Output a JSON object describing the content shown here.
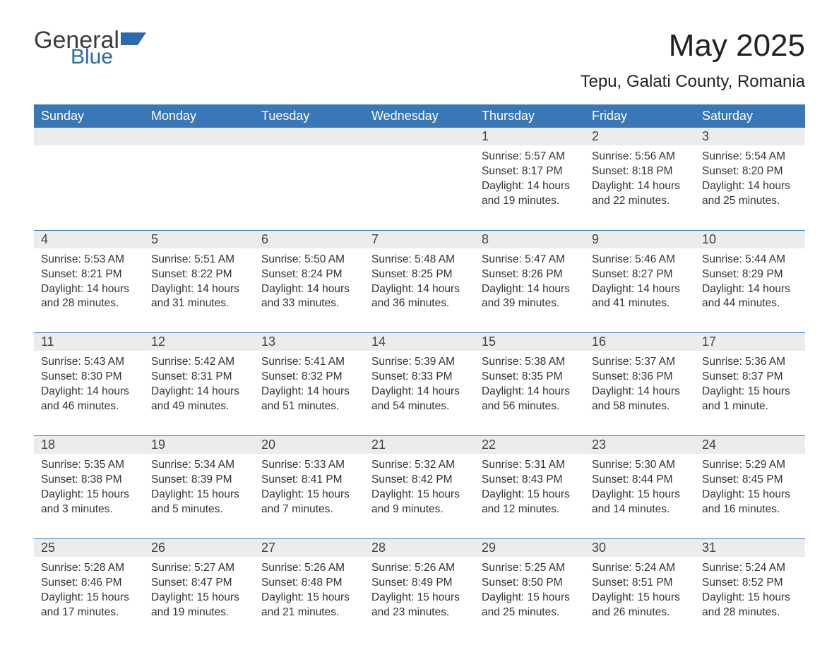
{
  "logo": {
    "word1": "General",
    "word2": "Blue"
  },
  "title": "May 2025",
  "subtitle": "Tepu, Galati County, Romania",
  "colors": {
    "header_bg": "#3a77b6",
    "header_text": "#ffffff",
    "daynum_bg": "#ececec",
    "text": "#333333",
    "logo_blue": "#2b6aad",
    "page_bg": "#ffffff"
  },
  "fonts": {
    "title_pt": 44,
    "subtitle_pt": 24,
    "dayhead_pt": 18,
    "body_pt": 15.5
  },
  "day_headers": [
    "Sunday",
    "Monday",
    "Tuesday",
    "Wednesday",
    "Thursday",
    "Friday",
    "Saturday"
  ],
  "weeks": [
    [
      null,
      null,
      null,
      null,
      {
        "num": "1",
        "sunrise": "Sunrise: 5:57 AM",
        "sunset": "Sunset: 8:17 PM",
        "daylight": "Daylight: 14 hours and 19 minutes."
      },
      {
        "num": "2",
        "sunrise": "Sunrise: 5:56 AM",
        "sunset": "Sunset: 8:18 PM",
        "daylight": "Daylight: 14 hours and 22 minutes."
      },
      {
        "num": "3",
        "sunrise": "Sunrise: 5:54 AM",
        "sunset": "Sunset: 8:20 PM",
        "daylight": "Daylight: 14 hours and 25 minutes."
      }
    ],
    [
      {
        "num": "4",
        "sunrise": "Sunrise: 5:53 AM",
        "sunset": "Sunset: 8:21 PM",
        "daylight": "Daylight: 14 hours and 28 minutes."
      },
      {
        "num": "5",
        "sunrise": "Sunrise: 5:51 AM",
        "sunset": "Sunset: 8:22 PM",
        "daylight": "Daylight: 14 hours and 31 minutes."
      },
      {
        "num": "6",
        "sunrise": "Sunrise: 5:50 AM",
        "sunset": "Sunset: 8:24 PM",
        "daylight": "Daylight: 14 hours and 33 minutes."
      },
      {
        "num": "7",
        "sunrise": "Sunrise: 5:48 AM",
        "sunset": "Sunset: 8:25 PM",
        "daylight": "Daylight: 14 hours and 36 minutes."
      },
      {
        "num": "8",
        "sunrise": "Sunrise: 5:47 AM",
        "sunset": "Sunset: 8:26 PM",
        "daylight": "Daylight: 14 hours and 39 minutes."
      },
      {
        "num": "9",
        "sunrise": "Sunrise: 5:46 AM",
        "sunset": "Sunset: 8:27 PM",
        "daylight": "Daylight: 14 hours and 41 minutes."
      },
      {
        "num": "10",
        "sunrise": "Sunrise: 5:44 AM",
        "sunset": "Sunset: 8:29 PM",
        "daylight": "Daylight: 14 hours and 44 minutes."
      }
    ],
    [
      {
        "num": "11",
        "sunrise": "Sunrise: 5:43 AM",
        "sunset": "Sunset: 8:30 PM",
        "daylight": "Daylight: 14 hours and 46 minutes."
      },
      {
        "num": "12",
        "sunrise": "Sunrise: 5:42 AM",
        "sunset": "Sunset: 8:31 PM",
        "daylight": "Daylight: 14 hours and 49 minutes."
      },
      {
        "num": "13",
        "sunrise": "Sunrise: 5:41 AM",
        "sunset": "Sunset: 8:32 PM",
        "daylight": "Daylight: 14 hours and 51 minutes."
      },
      {
        "num": "14",
        "sunrise": "Sunrise: 5:39 AM",
        "sunset": "Sunset: 8:33 PM",
        "daylight": "Daylight: 14 hours and 54 minutes."
      },
      {
        "num": "15",
        "sunrise": "Sunrise: 5:38 AM",
        "sunset": "Sunset: 8:35 PM",
        "daylight": "Daylight: 14 hours and 56 minutes."
      },
      {
        "num": "16",
        "sunrise": "Sunrise: 5:37 AM",
        "sunset": "Sunset: 8:36 PM",
        "daylight": "Daylight: 14 hours and 58 minutes."
      },
      {
        "num": "17",
        "sunrise": "Sunrise: 5:36 AM",
        "sunset": "Sunset: 8:37 PM",
        "daylight": "Daylight: 15 hours and 1 minute."
      }
    ],
    [
      {
        "num": "18",
        "sunrise": "Sunrise: 5:35 AM",
        "sunset": "Sunset: 8:38 PM",
        "daylight": "Daylight: 15 hours and 3 minutes."
      },
      {
        "num": "19",
        "sunrise": "Sunrise: 5:34 AM",
        "sunset": "Sunset: 8:39 PM",
        "daylight": "Daylight: 15 hours and 5 minutes."
      },
      {
        "num": "20",
        "sunrise": "Sunrise: 5:33 AM",
        "sunset": "Sunset: 8:41 PM",
        "daylight": "Daylight: 15 hours and 7 minutes."
      },
      {
        "num": "21",
        "sunrise": "Sunrise: 5:32 AM",
        "sunset": "Sunset: 8:42 PM",
        "daylight": "Daylight: 15 hours and 9 minutes."
      },
      {
        "num": "22",
        "sunrise": "Sunrise: 5:31 AM",
        "sunset": "Sunset: 8:43 PM",
        "daylight": "Daylight: 15 hours and 12 minutes."
      },
      {
        "num": "23",
        "sunrise": "Sunrise: 5:30 AM",
        "sunset": "Sunset: 8:44 PM",
        "daylight": "Daylight: 15 hours and 14 minutes."
      },
      {
        "num": "24",
        "sunrise": "Sunrise: 5:29 AM",
        "sunset": "Sunset: 8:45 PM",
        "daylight": "Daylight: 15 hours and 16 minutes."
      }
    ],
    [
      {
        "num": "25",
        "sunrise": "Sunrise: 5:28 AM",
        "sunset": "Sunset: 8:46 PM",
        "daylight": "Daylight: 15 hours and 17 minutes."
      },
      {
        "num": "26",
        "sunrise": "Sunrise: 5:27 AM",
        "sunset": "Sunset: 8:47 PM",
        "daylight": "Daylight: 15 hours and 19 minutes."
      },
      {
        "num": "27",
        "sunrise": "Sunrise: 5:26 AM",
        "sunset": "Sunset: 8:48 PM",
        "daylight": "Daylight: 15 hours and 21 minutes."
      },
      {
        "num": "28",
        "sunrise": "Sunrise: 5:26 AM",
        "sunset": "Sunset: 8:49 PM",
        "daylight": "Daylight: 15 hours and 23 minutes."
      },
      {
        "num": "29",
        "sunrise": "Sunrise: 5:25 AM",
        "sunset": "Sunset: 8:50 PM",
        "daylight": "Daylight: 15 hours and 25 minutes."
      },
      {
        "num": "30",
        "sunrise": "Sunrise: 5:24 AM",
        "sunset": "Sunset: 8:51 PM",
        "daylight": "Daylight: 15 hours and 26 minutes."
      },
      {
        "num": "31",
        "sunrise": "Sunrise: 5:24 AM",
        "sunset": "Sunset: 8:52 PM",
        "daylight": "Daylight: 15 hours and 28 minutes."
      }
    ]
  ]
}
